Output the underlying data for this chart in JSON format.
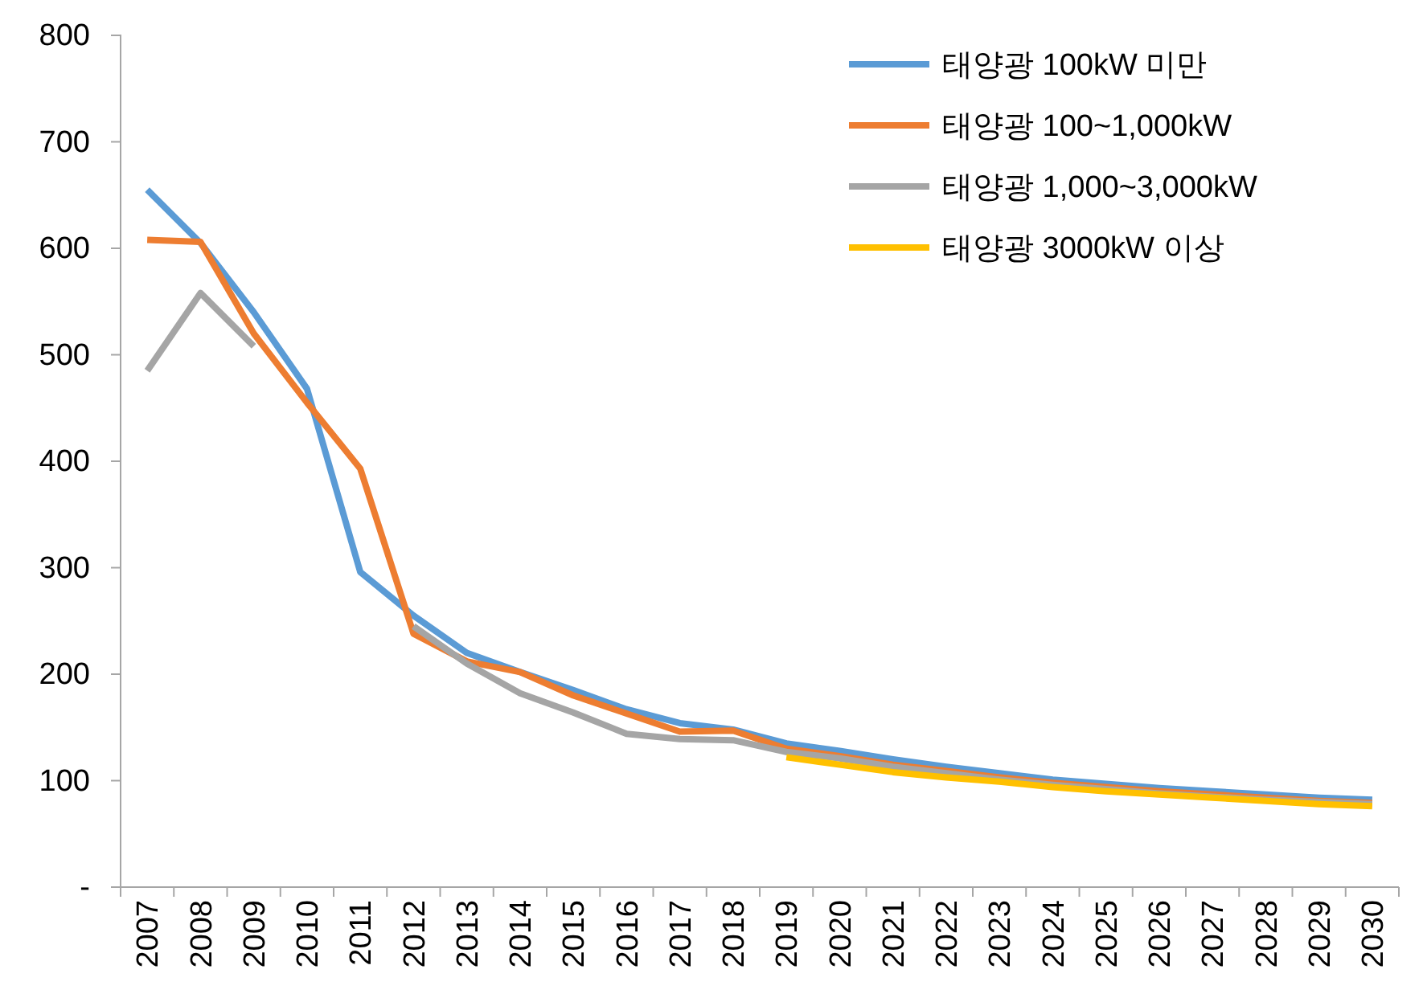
{
  "chart_data": {
    "type": "line",
    "categories": [
      "2007",
      "2008",
      "2009",
      "2010",
      "2011",
      "2012",
      "2013",
      "2014",
      "2015",
      "2016",
      "2017",
      "2018",
      "2019",
      "2020",
      "2021",
      "2022",
      "2023",
      "2024",
      "2025",
      "2026",
      "2027",
      "2028",
      "2029",
      "2030"
    ],
    "series": [
      {
        "name": "태양광 100kW 미만",
        "color": "#5b9bd5",
        "values": [
          655,
          605,
          540,
          468,
          296,
          255,
          220,
          202,
          185,
          167,
          154,
          148,
          135,
          128,
          120,
          113,
          107,
          101,
          97,
          93,
          90,
          87,
          84,
          82
        ]
      },
      {
        "name": "태양광 100~1,000kW",
        "color": "#ed7d31",
        "values": [
          608,
          606,
          520,
          455,
          393,
          238,
          212,
          202,
          180,
          163,
          146,
          147,
          130,
          123,
          115,
          109,
          103,
          98,
          94,
          90,
          87,
          84,
          81,
          79
        ]
      },
      {
        "name": "태양광 1,000~3,000kW",
        "color": "#a5a5a5",
        "values": [
          485,
          558,
          508,
          null,
          null,
          245,
          210,
          182,
          164,
          144,
          139,
          138,
          127,
          121,
          113,
          107,
          101,
          96,
          92,
          88,
          85,
          82,
          80,
          78
        ]
      },
      {
        "name": "태양광 3000kW 이상",
        "color": "#ffc000",
        "values": [
          null,
          null,
          null,
          null,
          null,
          null,
          null,
          null,
          null,
          null,
          null,
          null,
          122,
          115,
          108,
          103,
          99,
          94,
          90,
          87,
          84,
          81,
          78,
          76
        ]
      }
    ],
    "ylim": [
      0,
      800
    ],
    "yticks": [
      {
        "value": 0,
        "label": "-"
      },
      100,
      200,
      300,
      400,
      500,
      600,
      700,
      800
    ],
    "grid": false,
    "legend": "top right",
    "marker": "none",
    "line_style": "solid"
  }
}
